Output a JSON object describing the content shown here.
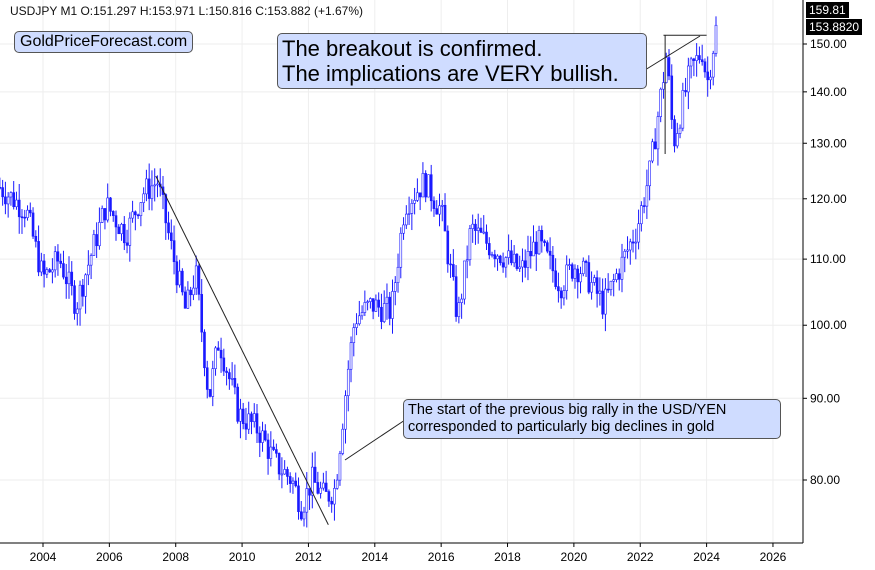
{
  "header": "USDJPY  M1  O:151.297  H:153.971  L:150.816  C:153.882  (+1.67%)",
  "logo": "GoldPriceForecast.com",
  "annotation_top": [
    "The breakout is confirmed.",
    "The implications are VERY bullish."
  ],
  "annotation_bottom": [
    "The start of the previous big rally in the USD/YEN",
    "corresponded to particularly big declines in gold"
  ],
  "price_tags": {
    "high": "159.81",
    "last": "153.8820"
  },
  "chart_data": {
    "type": "candlestick",
    "title": "USDJPY M1",
    "yscale": "log",
    "ylim": [
      72,
      162
    ],
    "xlim": [
      2002.7,
      2027
    ],
    "y_ticks": [
      "80.00",
      "90.00",
      "100.00",
      "110.00",
      "120.00",
      "130.00",
      "140.00",
      "150.00"
    ],
    "y_tick_values": [
      80,
      90,
      100,
      110,
      120,
      130,
      140,
      150
    ],
    "x_ticks": [
      "2004",
      "2006",
      "2008",
      "2010",
      "2012",
      "2014",
      "2016",
      "2018",
      "2020",
      "2022",
      "2024",
      "2026"
    ],
    "x_tick_values": [
      2004,
      2006,
      2008,
      2010,
      2012,
      2014,
      2016,
      2018,
      2020,
      2022,
      2024,
      2026
    ],
    "series_keypoints": [
      [
        2002.7,
        122
      ],
      [
        2003.5,
        118
      ],
      [
        2004,
        107
      ],
      [
        2004.5,
        110
      ],
      [
        2005,
        103
      ],
      [
        2005.9,
        119
      ],
      [
        2006.5,
        114
      ],
      [
        2007,
        121
      ],
      [
        2007.45,
        123
      ],
      [
        2007.9,
        111
      ],
      [
        2008.3,
        102
      ],
      [
        2008.6,
        108
      ],
      [
        2009,
        90
      ],
      [
        2009.3,
        98
      ],
      [
        2009.9,
        88
      ],
      [
        2010.5,
        86
      ],
      [
        2011,
        82
      ],
      [
        2011.5,
        80
      ],
      [
        2011.8,
        77
      ],
      [
        2012.1,
        80
      ],
      [
        2012.5,
        78
      ],
      [
        2012.8,
        79
      ],
      [
        2013.2,
        94
      ],
      [
        2013.4,
        101
      ],
      [
        2013.9,
        103
      ],
      [
        2014.5,
        102
      ],
      [
        2014.9,
        119
      ],
      [
        2015.5,
        123
      ],
      [
        2016,
        118
      ],
      [
        2016.5,
        101
      ],
      [
        2016.9,
        115
      ],
      [
        2017.5,
        112
      ],
      [
        2018,
        110
      ],
      [
        2018.4,
        108
      ],
      [
        2018.9,
        113
      ],
      [
        2019.6,
        106
      ],
      [
        2020,
        109
      ],
      [
        2020.3,
        108
      ],
      [
        2020.9,
        103
      ],
      [
        2021.5,
        110
      ],
      [
        2021.9,
        115
      ],
      [
        2022.3,
        125
      ],
      [
        2022.8,
        148
      ],
      [
        2023,
        130
      ],
      [
        2023.5,
        144
      ],
      [
        2023.9,
        149
      ],
      [
        2024,
        141
      ],
      [
        2024.3,
        153.9
      ]
    ],
    "trendlines": [
      [
        [
          2007.4,
          124
        ],
        [
          2012.6,
          75
        ]
      ],
      [
        [
          2022.7,
          151.9
        ],
        [
          2024.0,
          151.9
        ]
      ]
    ]
  }
}
